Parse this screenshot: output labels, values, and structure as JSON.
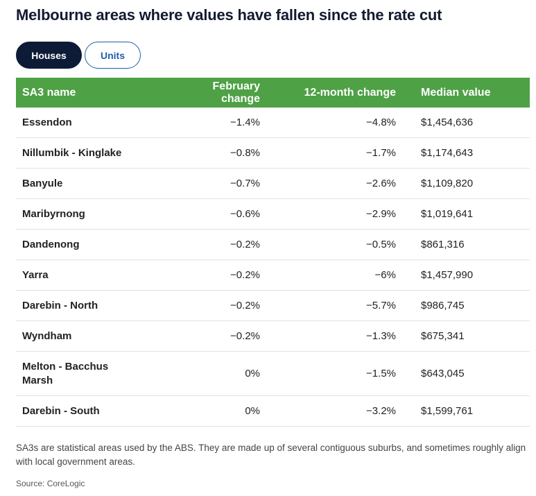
{
  "title": "Melbourne areas where values have fallen since the rate cut",
  "tabs": [
    {
      "label": "Houses",
      "active": true
    },
    {
      "label": "Units",
      "active": false
    }
  ],
  "table": {
    "headers": [
      "SA3 name",
      "February change",
      "12-month change",
      "Median value"
    ],
    "rows": [
      {
        "name": "Essendon",
        "feb": "−1.4%",
        "twelve": "−4.8%",
        "median": "$1,454,636"
      },
      {
        "name": "Nillumbik - Kinglake",
        "feb": "−0.8%",
        "twelve": "−1.7%",
        "median": "$1,174,643"
      },
      {
        "name": "Banyule",
        "feb": "−0.7%",
        "twelve": "−2.6%",
        "median": "$1,109,820"
      },
      {
        "name": "Maribyrnong",
        "feb": "−0.6%",
        "twelve": "−2.9%",
        "median": "$1,019,641"
      },
      {
        "name": "Dandenong",
        "feb": "−0.2%",
        "twelve": "−0.5%",
        "median": "$861,316"
      },
      {
        "name": "Yarra",
        "feb": "−0.2%",
        "twelve": "−6%",
        "median": "$1,457,990"
      },
      {
        "name": "Darebin - North",
        "feb": "−0.2%",
        "twelve": "−5.7%",
        "median": "$986,745"
      },
      {
        "name": "Wyndham",
        "feb": "−0.2%",
        "twelve": "−1.3%",
        "median": "$675,341"
      },
      {
        "name": "Melton - Bacchus Marsh",
        "feb": "0%",
        "twelve": "−1.5%",
        "median": "$643,045"
      },
      {
        "name": "Darebin - South",
        "feb": "0%",
        "twelve": "−3.2%",
        "median": "$1,599,761"
      }
    ]
  },
  "note": "SA3s are statistical areas used by the ABS. They are made up of several contiguous suburbs, and sometimes roughly align with local government areas.",
  "source": "Source: CoreLogic",
  "colors": {
    "header_bg": "#4ea145",
    "active_tab_bg": "#0d1b36",
    "inactive_tab_border": "#1f5fa8"
  }
}
